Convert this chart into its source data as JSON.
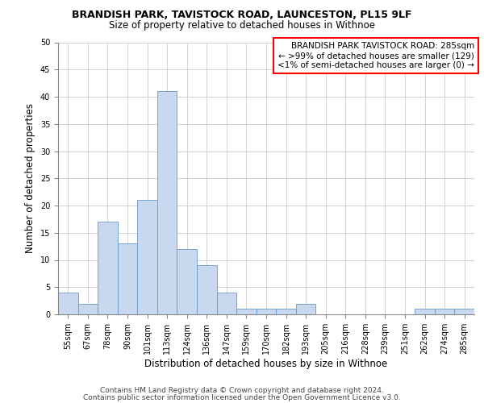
{
  "title": "BRANDISH PARK, TAVISTOCK ROAD, LAUNCESTON, PL15 9LF",
  "subtitle": "Size of property relative to detached houses in Withnoe",
  "xlabel": "Distribution of detached houses by size in Withnoe",
  "ylabel": "Number of detached properties",
  "bar_color": "#c8d9ef",
  "bar_edge_color": "#6699cc",
  "categories": [
    "55sqm",
    "67sqm",
    "78sqm",
    "90sqm",
    "101sqm",
    "113sqm",
    "124sqm",
    "136sqm",
    "147sqm",
    "159sqm",
    "170sqm",
    "182sqm",
    "193sqm",
    "205sqm",
    "216sqm",
    "228sqm",
    "239sqm",
    "251sqm",
    "262sqm",
    "274sqm",
    "285sqm"
  ],
  "values": [
    4,
    2,
    17,
    13,
    21,
    41,
    12,
    9,
    4,
    1,
    1,
    1,
    2,
    0,
    0,
    0,
    0,
    0,
    1,
    1,
    1
  ],
  "ylim": [
    0,
    50
  ],
  "yticks": [
    0,
    5,
    10,
    15,
    20,
    25,
    30,
    35,
    40,
    45,
    50
  ],
  "annotation_box_text": "BRANDISH PARK TAVISTOCK ROAD: 285sqm\n← >99% of detached houses are smaller (129)\n<1% of semi-detached houses are larger (0) →",
  "annotation_box_color": "#ffffff",
  "annotation_box_edge_color": "#ff0000",
  "footer_line1": "Contains HM Land Registry data © Crown copyright and database right 2024.",
  "footer_line2": "Contains public sector information licensed under the Open Government Licence v3.0.",
  "background_color": "#ffffff",
  "grid_color": "#cccccc",
  "title_fontsize": 9,
  "subtitle_fontsize": 8.5,
  "axis_label_fontsize": 8.5,
  "tick_fontsize": 7,
  "annot_fontsize": 7.5,
  "footer_fontsize": 6.5
}
